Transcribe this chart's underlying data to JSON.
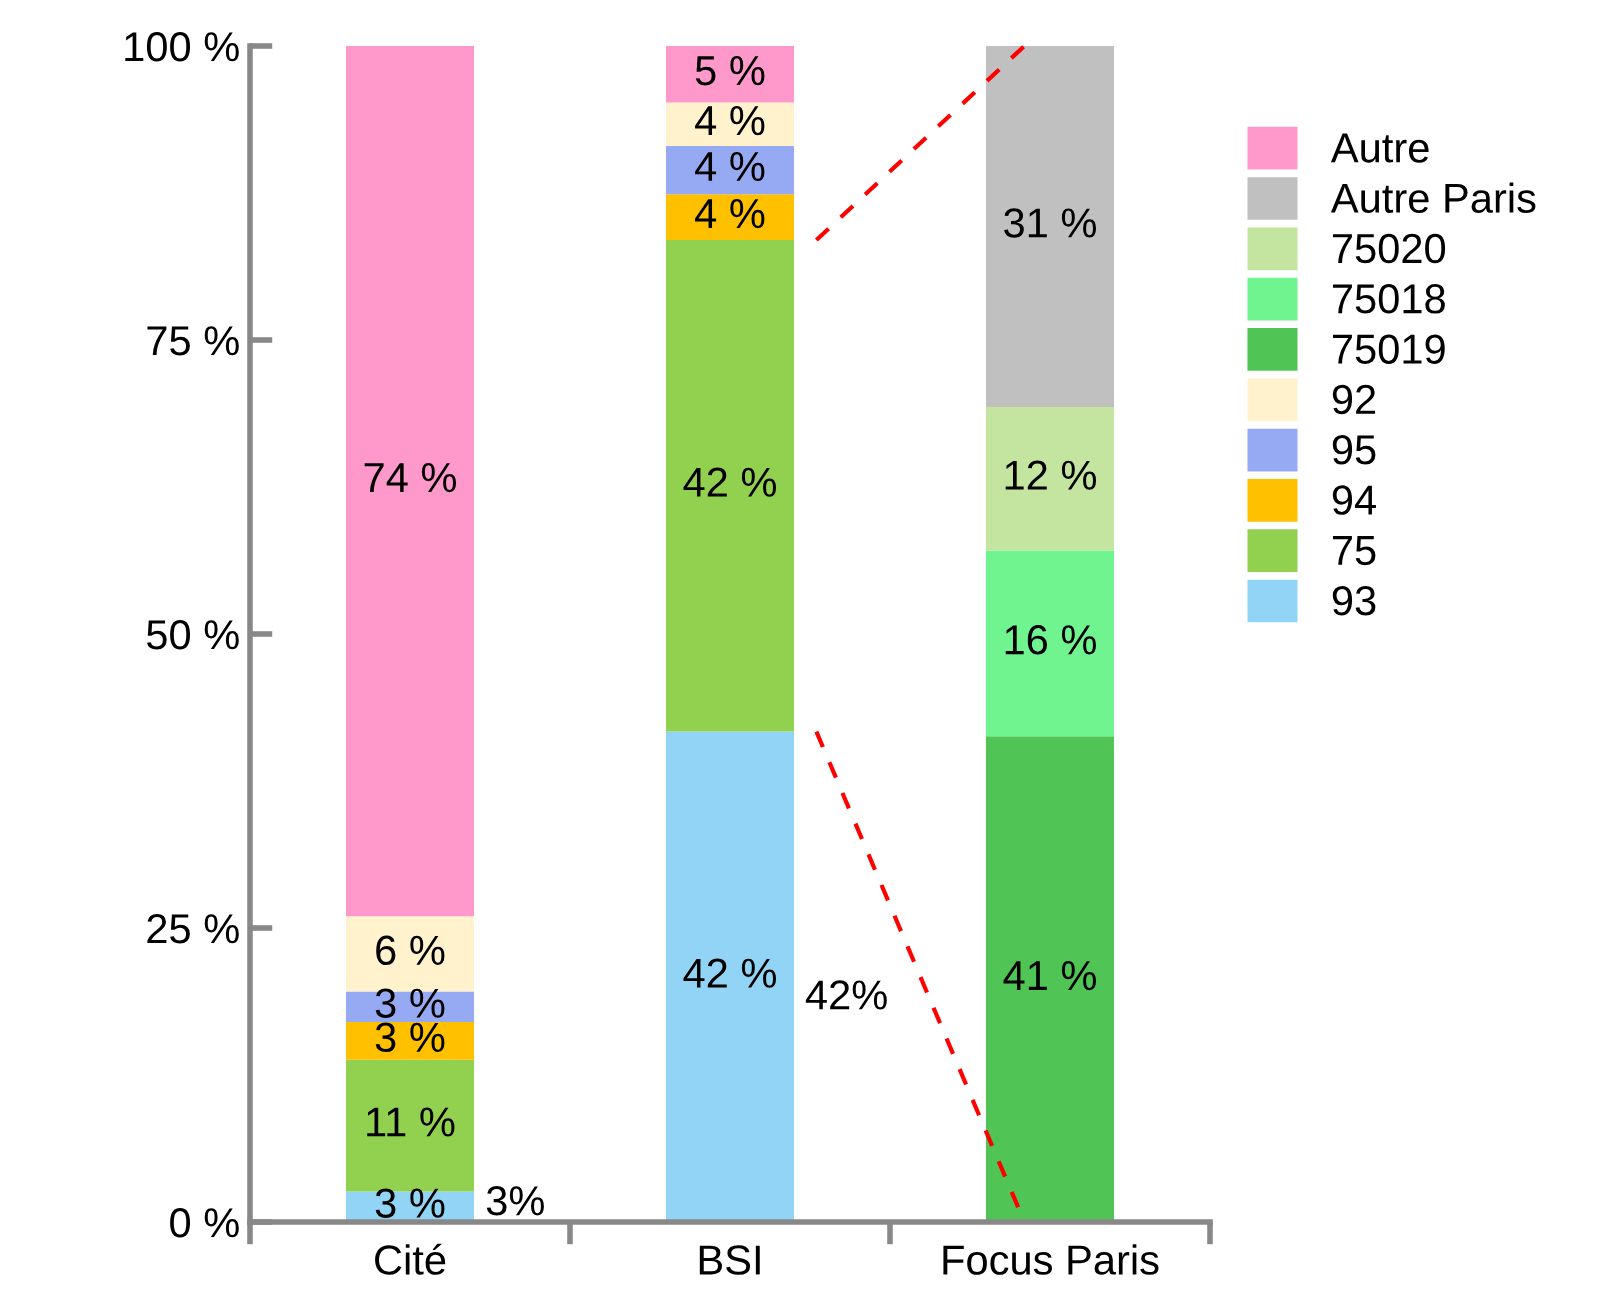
{
  "chart_data": {
    "type": "bar",
    "stacked": true,
    "categories": [
      "Cité",
      "BSI",
      "Focus Paris"
    ],
    "series": [
      {
        "name": "93",
        "color": "#92d4f5",
        "values": [
          2.6,
          41.7,
          null
        ],
        "value_labels": [
          "3 %",
          "42 %",
          null
        ]
      },
      {
        "name": "75",
        "color": "#92d050",
        "values": [
          11.2,
          41.8,
          null
        ],
        "value_labels": [
          "11 %",
          "42 %",
          null
        ]
      },
      {
        "name": "94",
        "color": "#ffc000",
        "values": [
          3.2,
          3.9,
          null
        ],
        "value_labels": [
          "3 %",
          "4 %",
          null
        ]
      },
      {
        "name": "95",
        "color": "#95aaf2",
        "values": [
          2.6,
          4.1,
          null
        ],
        "value_labels": [
          "3 %",
          "4 %",
          null
        ]
      },
      {
        "name": "92",
        "color": "#fff2cc",
        "values": [
          6.4,
          3.7,
          null
        ],
        "value_labels": [
          "6 %",
          "4 %",
          null
        ]
      },
      {
        "name": "75019",
        "color": "#50c454",
        "values": [
          null,
          null,
          41.3
        ],
        "value_labels": [
          null,
          null,
          "41 %"
        ]
      },
      {
        "name": "75018",
        "color": "#70f490",
        "values": [
          null,
          null,
          15.8
        ],
        "value_labels": [
          null,
          null,
          "16 %"
        ]
      },
      {
        "name": "75020",
        "color": "#c4e5a0",
        "values": [
          null,
          null,
          12.2
        ],
        "value_labels": [
          null,
          null,
          "12 %"
        ]
      },
      {
        "name": "Autre Paris",
        "color": "#c0c0c0",
        "values": [
          null,
          null,
          30.7
        ],
        "value_labels": [
          null,
          null,
          "31 %"
        ]
      },
      {
        "name": "Autre",
        "color": "#ff99cc",
        "values": [
          74.0,
          4.8,
          null
        ],
        "value_labels": [
          "74 %",
          "5 %",
          null
        ]
      }
    ],
    "annotations": [
      "3%",
      "42%"
    ],
    "ylim": [
      0,
      100
    ],
    "yticks": [
      {
        "value": 0,
        "label": "0 %"
      },
      {
        "value": 25,
        "label": "25 %"
      },
      {
        "value": 50,
        "label": "50 %"
      },
      {
        "value": 75,
        "label": "75 %"
      },
      {
        "value": 100,
        "label": "100 %"
      }
    ],
    "legend": "right",
    "grid": false
  }
}
